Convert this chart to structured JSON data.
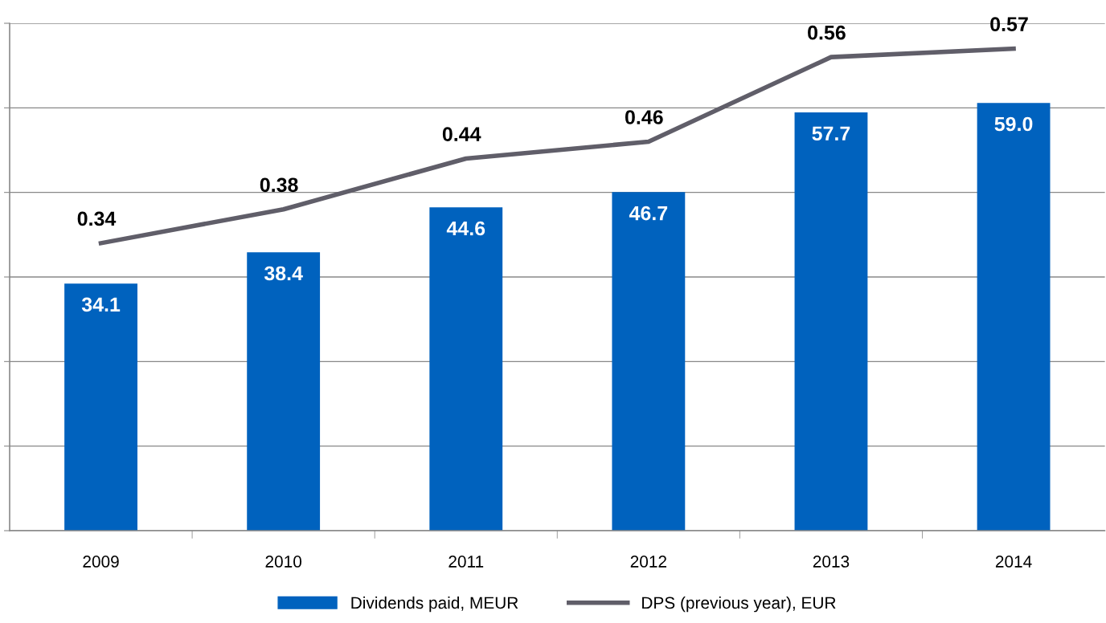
{
  "chart_data": {
    "type": "bar",
    "categories": [
      "2009",
      "2010",
      "2011",
      "2012",
      "2013",
      "2014"
    ],
    "series": [
      {
        "name": "Dividends paid, MEUR",
        "color": "#0062be",
        "values": [
          34.1,
          38.4,
          44.6,
          46.7,
          57.7,
          59.0
        ],
        "value_labels": [
          "34.1",
          "38.4",
          "44.6",
          "46.7",
          "57.7",
          "59.0"
        ]
      },
      {
        "name": "DPS (previous year), EUR",
        "type": "line",
        "axis": "y2",
        "color": "#605e69",
        "values": [
          0.34,
          0.38,
          0.44,
          0.46,
          0.56,
          0.57
        ]
      }
    ],
    "ylim": [
      0,
      70
    ],
    "y2lim": [
      0,
      0.6
    ],
    "data_labels": true,
    "grid": "y",
    "legend": "bottom",
    "tick_labels": "x",
    "marker": "none",
    "line_style": "solid"
  }
}
